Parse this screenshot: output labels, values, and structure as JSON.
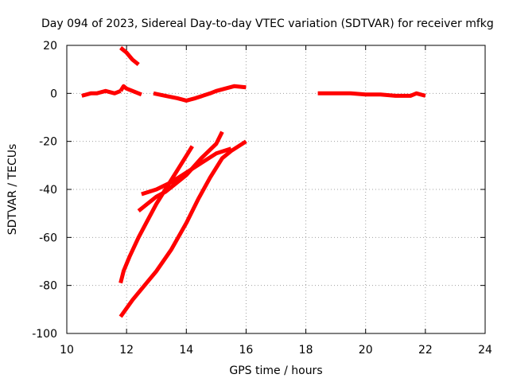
{
  "chart_data": {
    "type": "line",
    "title": "Day 094 of 2023, Sidereal Day-to-day VTEC variation (SDTVAR) for receiver mfkg",
    "xlabel": "GPS time / hours",
    "ylabel": "SDTVAR / TECUs",
    "xlim": [
      10,
      24
    ],
    "ylim": [
      -100,
      20
    ],
    "xticks": [
      "10",
      "12",
      "14",
      "16",
      "18",
      "20",
      "22",
      "24"
    ],
    "yticks": [
      "-100",
      "-80",
      "-60",
      "-40",
      "-20",
      "0",
      "20"
    ],
    "grid": true,
    "line_color": "#ff0000",
    "series": [
      {
        "x": [
          10.5,
          10.8,
          11.0,
          11.3,
          11.6,
          11.8
        ],
        "y": [
          -1,
          0,
          0,
          1,
          0,
          1
        ]
      },
      {
        "x": [
          11.8,
          11.9,
          12.0,
          12.2,
          12.5
        ],
        "y": [
          1,
          3,
          2,
          1,
          -0.5
        ]
      },
      {
        "x": [
          12.9,
          13.3,
          13.7,
          14.0,
          14.3,
          14.8,
          15.0,
          15.3,
          15.6,
          16.0
        ],
        "y": [
          0,
          -1,
          -2,
          -3,
          -2,
          0,
          1,
          2,
          3,
          2.5
        ]
      },
      {
        "x": [
          11.8,
          12.0,
          12.2,
          12.4
        ],
        "y": [
          19,
          17,
          14,
          12
        ]
      },
      {
        "x": [
          18.4,
          19.0,
          19.5,
          20.0,
          20.5,
          21.0,
          21.5,
          21.7,
          22.0
        ],
        "y": [
          0,
          0,
          0,
          -0.5,
          -0.5,
          -1,
          -1,
          0,
          -1
        ]
      },
      {
        "x": [
          11.8,
          11.9,
          12.1,
          12.4,
          12.7,
          13.0,
          13.4,
          13.7,
          14.0,
          14.2
        ],
        "y": [
          -79,
          -74,
          -68,
          -60,
          -53,
          -46,
          -38,
          -32,
          -26,
          -22
        ]
      },
      {
        "x": [
          11.8,
          12.2,
          12.6,
          13.0,
          13.5,
          14.0,
          14.4,
          14.8,
          15.2,
          15.5,
          16.0
        ],
        "y": [
          -93,
          -86,
          -80,
          -74,
          -65,
          -54,
          -44,
          -35,
          -27,
          -24,
          -20
        ]
      },
      {
        "x": [
          12.4,
          12.7,
          13.0,
          13.3,
          13.6,
          14.0,
          14.5,
          15.0,
          15.2
        ],
        "y": [
          -49,
          -46,
          -43,
          -41,
          -38,
          -34,
          -27,
          -21,
          -16
        ]
      },
      {
        "x": [
          12.5,
          13.0,
          13.5,
          14.0,
          14.5,
          15.0,
          15.5
        ],
        "y": [
          -42,
          -40,
          -37,
          -33,
          -29,
          -25,
          -23
        ]
      }
    ]
  }
}
